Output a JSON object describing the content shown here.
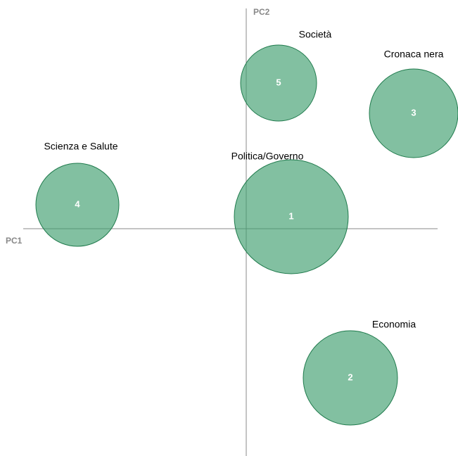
{
  "chart_data": {
    "type": "scatter",
    "x_label": "PC1",
    "y_label": "PC2",
    "xlim": [
      -0.317,
      0.272
    ],
    "ylim": [
      -0.323,
      0.313
    ],
    "color": "#3f9e6f",
    "edge_color": "#1f7a4c",
    "labels": [
      "1",
      "2",
      "3",
      "4",
      "5"
    ],
    "names": [
      "Politica/Governo",
      "Economia",
      "Cronaca nera",
      "Scienza e Salute",
      "Società"
    ],
    "x": [
      0.064,
      0.148,
      0.238,
      -0.24,
      0.046
    ],
    "y": [
      0.017,
      -0.212,
      0.164,
      0.034,
      0.207
    ],
    "sizes": [
      0.081,
      0.067,
      0.063,
      0.059,
      0.054
    ]
  }
}
